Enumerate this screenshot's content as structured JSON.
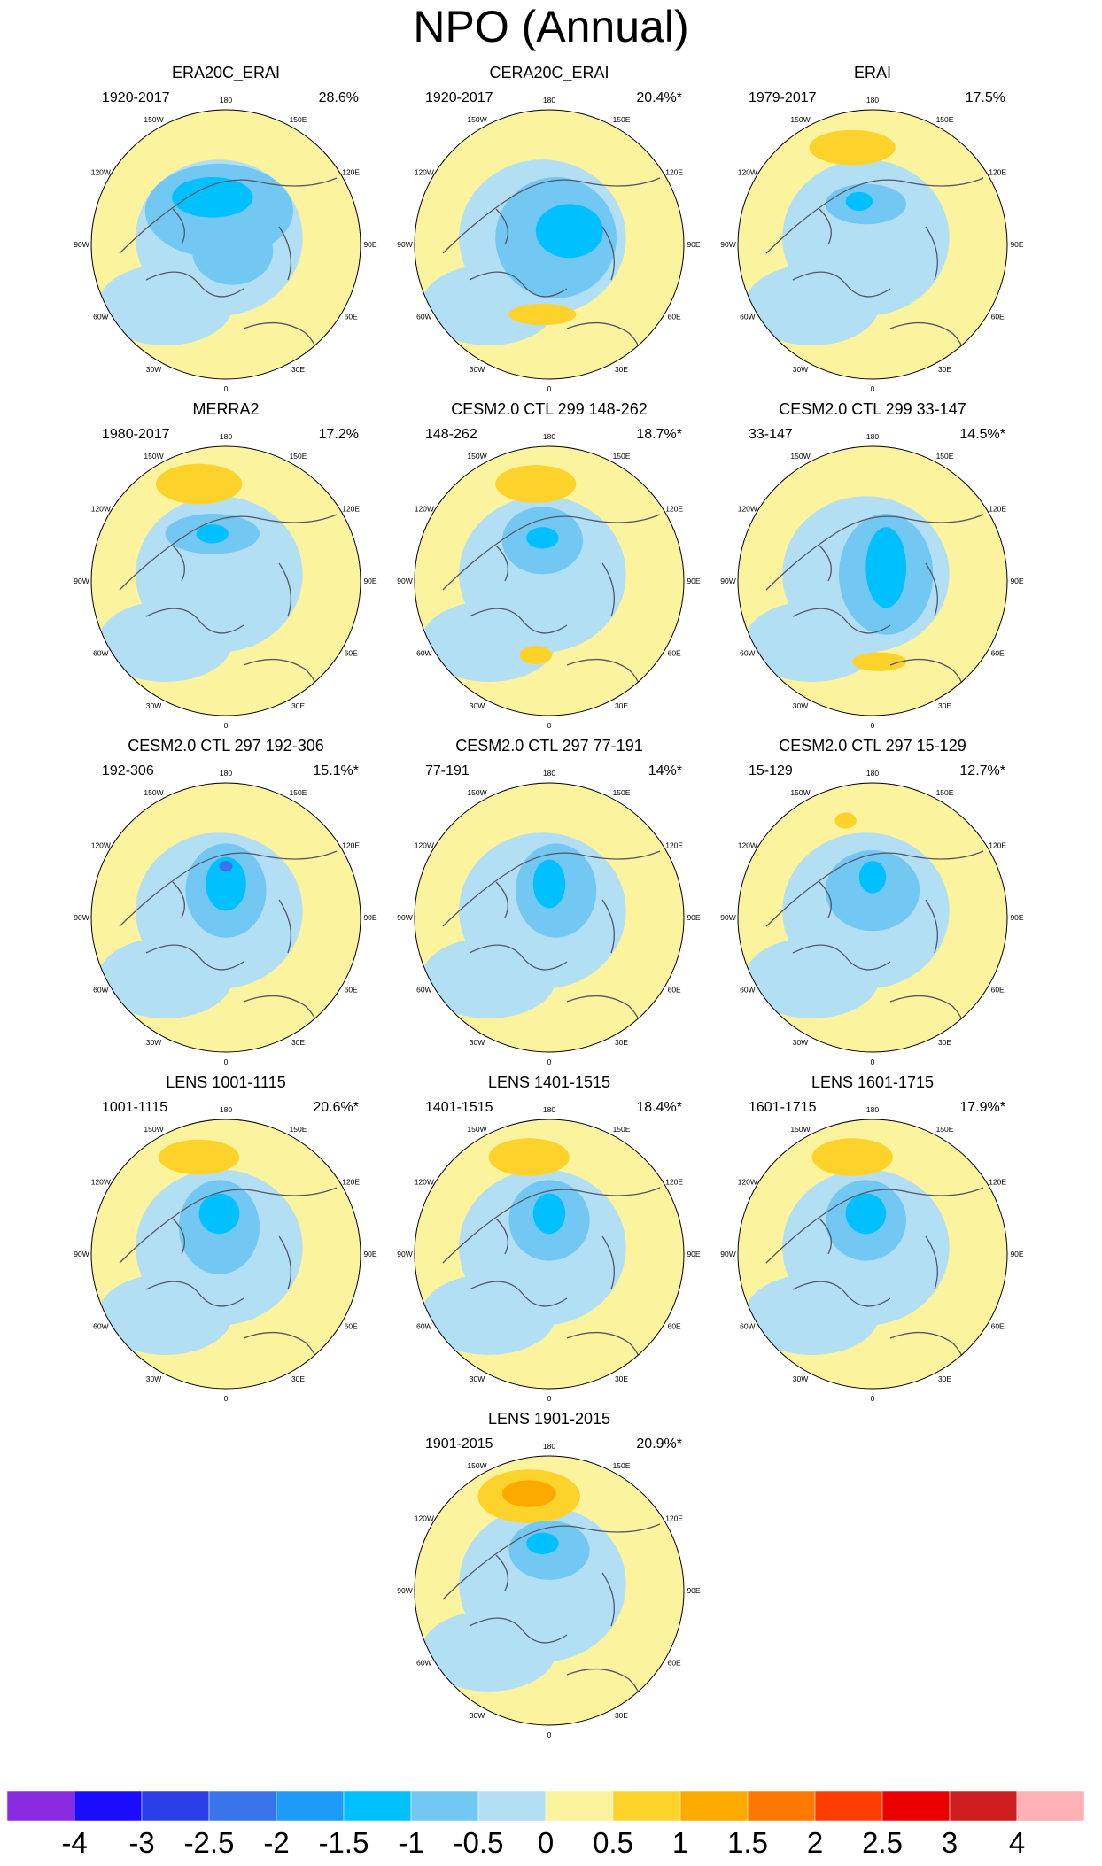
{
  "title": "NPO (Annual)",
  "longitude_labels": {
    "lon_180": "180",
    "lon_150e": "150E",
    "lon_120e": "120E",
    "lon_90e": "90E",
    "lon_60e": "60E",
    "lon_30e": "30E",
    "lon_0": "0",
    "lon_30w": "30W",
    "lon_60w": "60W",
    "lon_90w": "90W",
    "lon_120w": "120W",
    "lon_150w": "150W"
  },
  "panels": [
    {
      "title": "ERA20C_ERAI",
      "period": "1920-2017",
      "variance": "28.6%"
    },
    {
      "title": "CERA20C_ERAI",
      "period": "1920-2017",
      "variance": "20.4%*"
    },
    {
      "title": "ERAI",
      "period": "1979-2017",
      "variance": "17.5%"
    },
    {
      "title": "MERRA2",
      "period": "1980-2017",
      "variance": "17.2%"
    },
    {
      "title": "CESM2.0 CTL 299 148-262",
      "period": "148-262",
      "variance": "18.7%*"
    },
    {
      "title": "CESM2.0 CTL 299 33-147",
      "period": "33-147",
      "variance": "14.5%*"
    },
    {
      "title": "CESM2.0 CTL 297 192-306",
      "period": "192-306",
      "variance": "15.1%*"
    },
    {
      "title": "CESM2.0 CTL 297 77-191",
      "period": "77-191",
      "variance": "14%*"
    },
    {
      "title": "CESM2.0 CTL 297 15-129",
      "period": "15-129",
      "variance": "12.7%*"
    },
    {
      "title": "LENS 1001-1115",
      "period": "1001-1115",
      "variance": "20.6%*"
    },
    {
      "title": "LENS 1401-1515",
      "period": "1401-1515",
      "variance": "18.4%*"
    },
    {
      "title": "LENS 1601-1715",
      "period": "1601-1715",
      "variance": "17.9%*"
    },
    {
      "title": "LENS 1901-2015",
      "period": "1901-2015",
      "variance": "20.9%*"
    }
  ],
  "colorbar": {
    "labels": [
      "-4",
      "-3",
      "-2.5",
      "-2",
      "-1.5",
      "-1",
      "-0.5",
      "0",
      "0.5",
      "1",
      "1.5",
      "2",
      "2.5",
      "3",
      "4"
    ],
    "colors": [
      "#8a2be2",
      "#1a0cff",
      "#2a3ee8",
      "#3a74ea",
      "#1e9af7",
      "#00c0ff",
      "#72c8f2",
      "#b3dff4",
      "#fbf39d",
      "#fdd22b",
      "#fdaa00",
      "#fd7800",
      "#fb3b00",
      "#ea0000",
      "#cd1f1f",
      "#fdb1b5"
    ]
  },
  "colors": {
    "negative_weak": "#b3dff4",
    "negative_mid": "#72c8f2",
    "negative_strong": "#00c0ff",
    "negative_core": "#3a74ea",
    "positive_weak": "#fbf39d",
    "positive_mid": "#fdd22b",
    "positive_strong": "#fdaa00",
    "coastline": "#555566"
  }
}
